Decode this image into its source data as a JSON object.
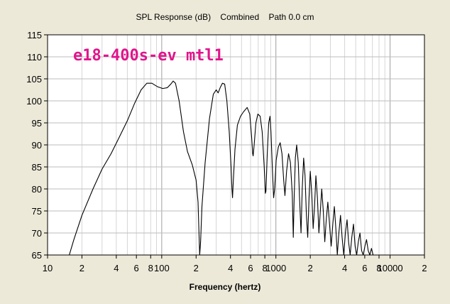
{
  "chart_data": {
    "type": "line",
    "title": "SPL Response (dB)    Combined    Path 0.0 cm",
    "annotation": "e18-400s-ev mtl1",
    "xlabel": "Frequency (hertz)",
    "ylabel": "",
    "xscale": "log",
    "xlim": [
      10,
      20000
    ],
    "ylim": [
      65,
      115
    ],
    "grid": true,
    "x_tick_labels": [
      {
        "value": 10,
        "label": "10"
      },
      {
        "value": 20,
        "label": "2"
      },
      {
        "value": 40,
        "label": "4"
      },
      {
        "value": 60,
        "label": "6"
      },
      {
        "value": 80,
        "label": "8"
      },
      {
        "value": 100,
        "label": "100"
      },
      {
        "value": 200,
        "label": "2"
      },
      {
        "value": 400,
        "label": "4"
      },
      {
        "value": 600,
        "label": "6"
      },
      {
        "value": 800,
        "label": "8"
      },
      {
        "value": 1000,
        "label": "1000"
      },
      {
        "value": 2000,
        "label": "2"
      },
      {
        "value": 4000,
        "label": "4"
      },
      {
        "value": 6000,
        "label": "6"
      },
      {
        "value": 8000,
        "label": "8"
      },
      {
        "value": 10000,
        "label": "10000"
      },
      {
        "value": 20000,
        "label": "2"
      }
    ],
    "y_ticks": [
      65,
      70,
      75,
      80,
      85,
      90,
      95,
      100,
      105,
      110,
      115
    ],
    "series": [
      {
        "color": "#000000",
        "points": [
          [
            15.5,
            65
          ],
          [
            17,
            68.5
          ],
          [
            20,
            74
          ],
          [
            25,
            80
          ],
          [
            30,
            84.5
          ],
          [
            36,
            88
          ],
          [
            42,
            91.5
          ],
          [
            50,
            95.5
          ],
          [
            58,
            99.5
          ],
          [
            66,
            102.5
          ],
          [
            74,
            104
          ],
          [
            82,
            104
          ],
          [
            92,
            103.2
          ],
          [
            102,
            102.8
          ],
          [
            112,
            103
          ],
          [
            120,
            103.8
          ],
          [
            126,
            104.5
          ],
          [
            132,
            104
          ],
          [
            142,
            100
          ],
          [
            155,
            93
          ],
          [
            168,
            88.5
          ],
          [
            185,
            85.5
          ],
          [
            200,
            82
          ],
          [
            208,
            77
          ],
          [
            212,
            70
          ],
          [
            215,
            65
          ],
          [
            219,
            68
          ],
          [
            225,
            76
          ],
          [
            240,
            86
          ],
          [
            262,
            96
          ],
          [
            283,
            101.5
          ],
          [
            300,
            102.5
          ],
          [
            312,
            101.8
          ],
          [
            325,
            103
          ],
          [
            340,
            104
          ],
          [
            356,
            103.8
          ],
          [
            372,
            100
          ],
          [
            390,
            93
          ],
          [
            405,
            85
          ],
          [
            412,
            80
          ],
          [
            417,
            78
          ],
          [
            422,
            81
          ],
          [
            438,
            89
          ],
          [
            460,
            94.5
          ],
          [
            490,
            96.5
          ],
          [
            520,
            97.5
          ],
          [
            560,
            98.5
          ],
          [
            590,
            97
          ],
          [
            612,
            92
          ],
          [
            626,
            88
          ],
          [
            632,
            87.5
          ],
          [
            645,
            90
          ],
          [
            668,
            95
          ],
          [
            695,
            97
          ],
          [
            728,
            96.5
          ],
          [
            758,
            93
          ],
          [
            790,
            85
          ],
          [
            808,
            79
          ],
          [
            818,
            79.5
          ],
          [
            840,
            88
          ],
          [
            865,
            95
          ],
          [
            888,
            96.5
          ],
          [
            905,
            93
          ],
          [
            930,
            85
          ],
          [
            955,
            78
          ],
          [
            975,
            80
          ],
          [
            1005,
            86.5
          ],
          [
            1050,
            89.5
          ],
          [
            1090,
            90.5
          ],
          [
            1130,
            88
          ],
          [
            1170,
            82
          ],
          [
            1200,
            78.5
          ],
          [
            1240,
            84
          ],
          [
            1290,
            88
          ],
          [
            1340,
            86
          ],
          [
            1390,
            79
          ],
          [
            1420,
            69
          ],
          [
            1445,
            78
          ],
          [
            1480,
            87
          ],
          [
            1520,
            90
          ],
          [
            1570,
            86
          ],
          [
            1610,
            78
          ],
          [
            1660,
            70
          ],
          [
            1700,
            80
          ],
          [
            1750,
            87
          ],
          [
            1800,
            83
          ],
          [
            1850,
            74
          ],
          [
            1900,
            69
          ],
          [
            1950,
            78
          ],
          [
            2000,
            84
          ],
          [
            2060,
            79
          ],
          [
            2120,
            71
          ],
          [
            2180,
            76
          ],
          [
            2240,
            83
          ],
          [
            2310,
            78
          ],
          [
            2380,
            70
          ],
          [
            2450,
            75
          ],
          [
            2520,
            80
          ],
          [
            2600,
            75
          ],
          [
            2680,
            68
          ],
          [
            2760,
            73
          ],
          [
            2850,
            77
          ],
          [
            2950,
            72
          ],
          [
            3050,
            67
          ],
          [
            3150,
            72
          ],
          [
            3250,
            76
          ],
          [
            3350,
            71
          ],
          [
            3450,
            65
          ],
          [
            3560,
            70
          ],
          [
            3680,
            74
          ],
          [
            3800,
            69
          ],
          [
            3930,
            65
          ],
          [
            4060,
            70
          ],
          [
            4200,
            73
          ],
          [
            4330,
            68
          ],
          [
            4470,
            65
          ],
          [
            4620,
            69
          ],
          [
            4780,
            72
          ],
          [
            4940,
            67
          ],
          [
            5100,
            65
          ],
          [
            5270,
            68
          ],
          [
            5450,
            70
          ],
          [
            5630,
            66
          ],
          [
            5820,
            65
          ],
          [
            6020,
            67
          ],
          [
            6220,
            68.5
          ],
          [
            6430,
            66
          ],
          [
            6650,
            65
          ],
          [
            6870,
            66.5
          ],
          [
            7100,
            65
          ]
        ]
      }
    ]
  }
}
